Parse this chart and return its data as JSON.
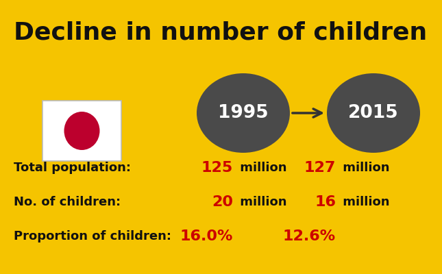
{
  "title": "Decline in number of children",
  "background_color": "#F5C400",
  "title_color": "#111111",
  "title_fontsize": 26,
  "circle_color": "#BC002D",
  "year_bubble_color": "#4a4a4a",
  "year_1": "1995",
  "year_2": "2015",
  "rows": [
    {
      "label": "Total population:",
      "val1": "125",
      "val1_unit": " million",
      "val2": "127",
      "val2_unit": " million"
    },
    {
      "label": "No. of children:",
      "val1": "20",
      "val1_unit": " million",
      "val2": "16",
      "val2_unit": " million"
    },
    {
      "label": "Proportion of children:",
      "val1": "16.0%",
      "val1_unit": "",
      "val2": "12.6%",
      "val2_unit": ""
    }
  ],
  "label_color": "#111111",
  "value_color": "#CC0000",
  "unit_color": "#111111",
  "label_fontsize": 13,
  "value_fontsize": 16,
  "unit_fontsize": 13,
  "year_fontsize": 19
}
